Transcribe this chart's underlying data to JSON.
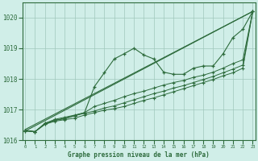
{
  "xlabel": "Graphe pression niveau de la mer (hPa)",
  "background_color": "#d0eee8",
  "plot_bg_color": "#d0eee8",
  "grid_color": "#a0c8bc",
  "line_color": "#2d6b3c",
  "ylim": [
    1016.0,
    1020.5
  ],
  "xlim": [
    -0.3,
    23.3
  ],
  "yticks": [
    1016,
    1017,
    1018,
    1019,
    1020
  ],
  "xticks": [
    0,
    1,
    2,
    3,
    4,
    5,
    6,
    7,
    8,
    9,
    10,
    11,
    12,
    13,
    14,
    15,
    16,
    17,
    18,
    19,
    20,
    21,
    22,
    23
  ],
  "series_straight": {
    "x": [
      0,
      23
    ],
    "y": [
      1016.3,
      1020.2
    ]
  },
  "series_straight2": {
    "x": [
      0,
      23
    ],
    "y": [
      1016.35,
      1020.2
    ]
  },
  "series_A": {
    "x": [
      0,
      1,
      2,
      3,
      4,
      5,
      6,
      7,
      8,
      9,
      10,
      11,
      12,
      13,
      14,
      15,
      16,
      17,
      18,
      19,
      20,
      21,
      22,
      23
    ],
    "y": [
      1016.3,
      1016.28,
      1016.52,
      1016.62,
      1016.67,
      1016.72,
      1016.82,
      1016.9,
      1016.98,
      1017.03,
      1017.1,
      1017.2,
      1017.3,
      1017.38,
      1017.48,
      1017.58,
      1017.68,
      1017.78,
      1017.88,
      1017.98,
      1018.1,
      1018.2,
      1018.35,
      1020.2
    ]
  },
  "series_B": {
    "x": [
      0,
      1,
      2,
      3,
      4,
      5,
      6,
      7,
      8,
      9,
      10,
      11,
      12,
      13,
      14,
      15,
      16,
      17,
      18,
      19,
      20,
      21,
      22,
      23
    ],
    "y": [
      1016.3,
      1016.28,
      1016.52,
      1016.65,
      1016.72,
      1016.8,
      1016.88,
      1016.95,
      1017.05,
      1017.12,
      1017.22,
      1017.32,
      1017.42,
      1017.52,
      1017.6,
      1017.7,
      1017.78,
      1017.88,
      1017.98,
      1018.08,
      1018.2,
      1018.32,
      1018.45,
      1020.2
    ]
  },
  "series_peaked": {
    "x": [
      0,
      1,
      2,
      3,
      4,
      5,
      6,
      7,
      8,
      9,
      10,
      11,
      12,
      13,
      14,
      15,
      16,
      17,
      18,
      19,
      20,
      21,
      22,
      23
    ],
    "y": [
      1016.32,
      1016.28,
      1016.55,
      1016.65,
      1016.7,
      1016.8,
      1016.9,
      1017.75,
      1018.2,
      1018.65,
      1018.82,
      1019.0,
      1018.78,
      1018.65,
      1018.22,
      1018.15,
      1018.15,
      1018.35,
      1018.42,
      1018.42,
      1018.82,
      1019.35,
      1019.62,
      1020.2
    ]
  },
  "series_C": {
    "x": [
      0,
      1,
      2,
      3,
      4,
      5,
      6,
      7,
      8,
      9,
      10,
      11,
      12,
      13,
      14,
      15,
      16,
      17,
      18,
      19,
      20,
      21,
      22,
      23
    ],
    "y": [
      1016.32,
      1016.28,
      1016.55,
      1016.68,
      1016.75,
      1016.82,
      1016.9,
      1017.1,
      1017.2,
      1017.3,
      1017.42,
      1017.52,
      1017.6,
      1017.7,
      1017.8,
      1017.88,
      1017.95,
      1018.05,
      1018.12,
      1018.22,
      1018.35,
      1018.5,
      1018.62,
      1020.2
    ]
  }
}
